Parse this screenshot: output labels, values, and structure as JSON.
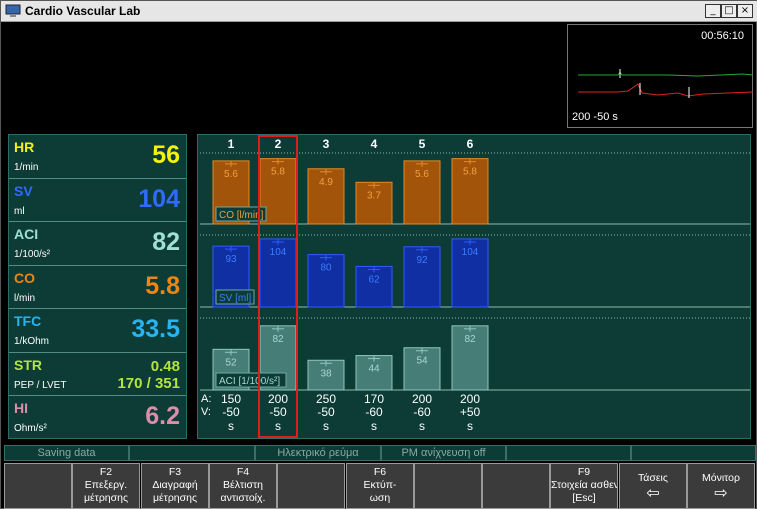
{
  "window": {
    "title": "Cardio Vascular Lab",
    "minimize_glyph": "_",
    "maximize_glyph": "□",
    "close_glyph": "×"
  },
  "monitor": {
    "time": "00:56:10",
    "scale": "200  -50  s"
  },
  "params": [
    {
      "name": "HR",
      "unit": "1/min",
      "value": "56",
      "color": "#f2f20e"
    },
    {
      "name": "SV",
      "unit": "ml",
      "value": "104",
      "color": "#2f6bff"
    },
    {
      "name": "ACI",
      "unit": "1/100/s²",
      "value": "82",
      "color": "#9fe0d6"
    },
    {
      "name": "CO",
      "unit": "l/min",
      "value": "5.8",
      "color": "#f2850d"
    },
    {
      "name": "TFC",
      "unit": "1/kOhm",
      "value": "33.5",
      "color": "#28b4f0"
    },
    {
      "name": "STR",
      "unit": "PEP / LVET",
      "value": "0.48",
      "value2": "170 / 351",
      "color": "#b3e63c"
    },
    {
      "name": "HI",
      "unit": "Ohm/s²",
      "value": "6.2",
      "color": "#d98faa"
    }
  ],
  "chart_data": {
    "type": "bar",
    "categories": [
      "1",
      "2",
      "3",
      "4",
      "5",
      "6"
    ],
    "selected": "2",
    "series": [
      {
        "name": "CO [l/min]",
        "values": [
          5.6,
          5.8,
          4.9,
          3.7,
          5.6,
          5.8
        ],
        "color": "#b05a0c"
      },
      {
        "name": "SV [ml]",
        "values": [
          93,
          104,
          80,
          62,
          92,
          104
        ],
        "color": "#1436b0"
      },
      {
        "name": "ACI [1/100/s²]",
        "values": [
          52,
          82,
          38,
          44,
          54,
          82
        ],
        "color": "#3f7a74"
      }
    ],
    "rows": {
      "a_label": "A:",
      "v_label": "V:",
      "a": [
        "150",
        "200",
        "250",
        "170",
        "200",
        "200"
      ],
      "v": [
        "-50",
        "-50",
        "-50",
        "-60",
        "-60",
        "+50"
      ],
      "unit": [
        "s",
        "s",
        "s",
        "s",
        "s",
        "s"
      ]
    }
  },
  "status": [
    "Saving data",
    "",
    "Ηλεκτρικό ρεύμα",
    "PM ανίχνευση off",
    "",
    ""
  ],
  "fkeys": [
    {
      "line1": "",
      "line2": "",
      "line3": ""
    },
    {
      "line1": "F2",
      "line2": "Επεξεργ.",
      "line3": "μέτρησης"
    },
    {
      "line1": "F3",
      "line2": "Διαγραφή",
      "line3": "μέτρησης"
    },
    {
      "line1": "F4",
      "line2": "Βέλτιστη",
      "line3": "αντιστοίχ."
    },
    {
      "line1": "",
      "line2": "",
      "line3": ""
    },
    {
      "line1": "F6",
      "line2": "Εκτύπ-",
      "line3": "ωση"
    },
    {
      "line1": "",
      "line2": "",
      "line3": ""
    },
    {
      "line1": "",
      "line2": "",
      "line3": ""
    },
    {
      "line1": "F9",
      "line2": "Στοιχεία ασθενή",
      "line3": "[Esc]"
    },
    {
      "line1": "",
      "line2": "Τάσεις",
      "line3": "⇦"
    },
    {
      "line1": "",
      "line2": "Μόνιτορ",
      "line3": "⇨"
    }
  ]
}
